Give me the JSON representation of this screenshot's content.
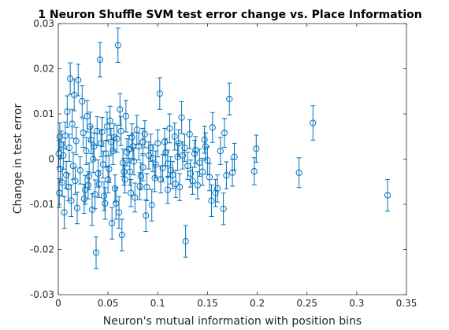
{
  "chart_data": {
    "type": "scatter",
    "title": "1 Neuron Shuffle SVM test error change vs. Place Information",
    "xlabel": "Neuron's mutual information with position bins",
    "ylabel": "Change in test error",
    "xlim": [
      0,
      0.35
    ],
    "ylim": [
      -0.03,
      0.03
    ],
    "x_ticks": [
      0,
      0.05,
      0.1,
      0.15,
      0.2,
      0.25,
      0.3,
      0.35
    ],
    "y_ticks": [
      -0.03,
      -0.02,
      -0.01,
      0,
      0.01,
      0.02,
      0.03
    ],
    "x_tick_labels": [
      "0",
      "0.05",
      "0.1",
      "0.15",
      "0.2",
      "0.25",
      "0.3",
      "0.35"
    ],
    "y_tick_labels": [
      "-0.03",
      "-0.02",
      "-0.01",
      "0",
      "0.01",
      "0.02",
      "0.03"
    ],
    "grid": false,
    "legend": "none",
    "marker": "circle",
    "error_bars": true,
    "color": "#0072BD",
    "points": [
      {
        "x": 0.331,
        "y": -0.008,
        "err": 0.0035
      },
      {
        "x": 0.256,
        "y": 0.008,
        "err": 0.0038
      },
      {
        "x": 0.242,
        "y": -0.003,
        "err": 0.0033
      },
      {
        "x": 0.199,
        "y": 0.0023,
        "err": 0.003
      },
      {
        "x": 0.197,
        "y": -0.0027,
        "err": 0.003
      },
      {
        "x": 0.177,
        "y": 0.0005,
        "err": 0.003
      },
      {
        "x": 0.175,
        "y": -0.003,
        "err": 0.003
      },
      {
        "x": 0.172,
        "y": 0.0133,
        "err": 0.0035
      },
      {
        "x": 0.169,
        "y": -0.0036,
        "err": 0.003
      },
      {
        "x": 0.167,
        "y": 0.0058,
        "err": 0.0032
      },
      {
        "x": 0.166,
        "y": -0.011,
        "err": 0.0035
      },
      {
        "x": 0.158,
        "y": -0.0075,
        "err": 0.003
      },
      {
        "x": 0.155,
        "y": 0.007,
        "err": 0.0033
      },
      {
        "x": 0.154,
        "y": -0.0092,
        "err": 0.0035
      },
      {
        "x": 0.15,
        "y": -0.0003,
        "err": 0.003
      },
      {
        "x": 0.147,
        "y": 0.0043,
        "err": 0.003
      },
      {
        "x": 0.145,
        "y": -0.0028,
        "err": 0.003
      },
      {
        "x": 0.14,
        "y": -0.0058,
        "err": 0.003
      },
      {
        "x": 0.138,
        "y": 0.002,
        "err": 0.003
      },
      {
        "x": 0.135,
        "y": -0.0048,
        "err": 0.003
      },
      {
        "x": 0.132,
        "y": 0.0055,
        "err": 0.0032
      },
      {
        "x": 0.13,
        "y": -0.0015,
        "err": 0.003
      },
      {
        "x": 0.128,
        "y": -0.0182,
        "err": 0.0035
      },
      {
        "x": 0.127,
        "y": 0.0025,
        "err": 0.003
      },
      {
        "x": 0.124,
        "y": 0.0092,
        "err": 0.0035
      },
      {
        "x": 0.122,
        "y": -0.0062,
        "err": 0.003
      },
      {
        "x": 0.12,
        "y": 0.0005,
        "err": 0.003
      },
      {
        "x": 0.117,
        "y": 0.005,
        "err": 0.003
      },
      {
        "x": 0.115,
        "y": -0.0035,
        "err": 0.003
      },
      {
        "x": 0.112,
        "y": 0.0068,
        "err": 0.0032
      },
      {
        "x": 0.11,
        "y": -0.0068,
        "err": 0.003
      },
      {
        "x": 0.108,
        "y": 0.0015,
        "err": 0.003
      },
      {
        "x": 0.105,
        "y": -0.002,
        "err": 0.003
      },
      {
        "x": 0.102,
        "y": 0.0145,
        "err": 0.0035
      },
      {
        "x": 0.1,
        "y": 0.0035,
        "err": 0.003
      },
      {
        "x": 0.097,
        "y": -0.0042,
        "err": 0.003
      },
      {
        "x": 0.094,
        "y": -0.0102,
        "err": 0.0035
      },
      {
        "x": 0.091,
        "y": 0.0008,
        "err": 0.003
      },
      {
        "x": 0.088,
        "y": -0.0125,
        "err": 0.0035
      },
      {
        "x": 0.085,
        "y": 0.0038,
        "err": 0.003
      },
      {
        "x": 0.082,
        "y": -0.006,
        "err": 0.003
      },
      {
        "x": 0.079,
        "y": 0.0065,
        "err": 0.0032
      },
      {
        "x": 0.076,
        "y": -0.0005,
        "err": 0.003
      },
      {
        "x": 0.073,
        "y": -0.0075,
        "err": 0.003
      },
      {
        "x": 0.071,
        "y": 0.0022,
        "err": 0.003
      },
      {
        "x": 0.068,
        "y": 0.0095,
        "err": 0.0035
      },
      {
        "x": 0.066,
        "y": -0.0028,
        "err": 0.003
      },
      {
        "x": 0.064,
        "y": -0.0168,
        "err": 0.0035
      },
      {
        "x": 0.062,
        "y": 0.011,
        "err": 0.0035
      },
      {
        "x": 0.06,
        "y": 0.0252,
        "err": 0.0038
      },
      {
        "x": 0.058,
        "y": -0.0098,
        "err": 0.0035
      },
      {
        "x": 0.056,
        "y": 0.0048,
        "err": 0.003
      },
      {
        "x": 0.054,
        "y": -0.0142,
        "err": 0.0035
      },
      {
        "x": 0.052,
        "y": 0.0085,
        "err": 0.0032
      },
      {
        "x": 0.05,
        "y": -0.0045,
        "err": 0.003
      },
      {
        "x": 0.048,
        "y": 0.0012,
        "err": 0.003
      },
      {
        "x": 0.046,
        "y": -0.0082,
        "err": 0.0032
      },
      {
        "x": 0.044,
        "y": 0.006,
        "err": 0.0032
      },
      {
        "x": 0.042,
        "y": 0.022,
        "err": 0.0038
      },
      {
        "x": 0.04,
        "y": -0.0032,
        "err": 0.003
      },
      {
        "x": 0.038,
        "y": -0.0207,
        "err": 0.0035
      },
      {
        "x": 0.036,
        "y": 0.0028,
        "err": 0.003
      },
      {
        "x": 0.034,
        "y": -0.0112,
        "err": 0.0035
      },
      {
        "x": 0.032,
        "y": 0.0072,
        "err": 0.0032
      },
      {
        "x": 0.03,
        "y": -0.0058,
        "err": 0.003
      },
      {
        "x": 0.028,
        "y": 0.0018,
        "err": 0.003
      },
      {
        "x": 0.026,
        "y": -0.0088,
        "err": 0.0032
      },
      {
        "x": 0.024,
        "y": 0.0128,
        "err": 0.0035
      },
      {
        "x": 0.022,
        "y": -0.0025,
        "err": 0.003
      },
      {
        "x": 0.02,
        "y": 0.0175,
        "err": 0.0035
      },
      {
        "x": 0.019,
        "y": -0.0108,
        "err": 0.0035
      },
      {
        "x": 0.018,
        "y": 0.004,
        "err": 0.003
      },
      {
        "x": 0.017,
        "y": -0.0048,
        "err": 0.003
      },
      {
        "x": 0.016,
        "y": 0.0142,
        "err": 0.0035
      },
      {
        "x": 0.015,
        "y": -0.0015,
        "err": 0.003
      },
      {
        "x": 0.014,
        "y": 0.0078,
        "err": 0.0032
      },
      {
        "x": 0.013,
        "y": -0.0092,
        "err": 0.0035
      },
      {
        "x": 0.012,
        "y": 0.0178,
        "err": 0.0035
      },
      {
        "x": 0.011,
        "y": 0.0025,
        "err": 0.003
      },
      {
        "x": 0.01,
        "y": -0.0062,
        "err": 0.003
      },
      {
        "x": 0.009,
        "y": 0.0105,
        "err": 0.0035
      },
      {
        "x": 0.008,
        "y": -0.0035,
        "err": 0.003
      },
      {
        "x": 0.007,
        "y": 0.0052,
        "err": 0.003
      },
      {
        "x": 0.006,
        "y": -0.0118,
        "err": 0.0035
      },
      {
        "x": 0.005,
        "y": 0.0008,
        "err": 0.003
      },
      {
        "x": 0.004,
        "y": -0.0052,
        "err": 0.003
      },
      {
        "x": 0.003,
        "y": 0.0032,
        "err": 0.003
      },
      {
        "x": 0.002,
        "y": -0.0022,
        "err": 0.003
      },
      {
        "x": 0.0015,
        "y": 0.005,
        "err": 0.003
      },
      {
        "x": 0.001,
        "y": -0.0075,
        "err": 0.0032
      },
      {
        "x": 0.0005,
        "y": 0.0012,
        "err": 0.003
      },
      {
        "x": 0.035,
        "y": 0.0,
        "err": 0.003
      },
      {
        "x": 0.045,
        "y": -0.0012,
        "err": 0.003
      },
      {
        "x": 0.055,
        "y": 0.0018,
        "err": 0.003
      },
      {
        "x": 0.065,
        "y": -0.0008,
        "err": 0.003
      },
      {
        "x": 0.075,
        "y": 0.0028,
        "err": 0.003
      },
      {
        "x": 0.085,
        "y": -0.0018,
        "err": 0.003
      },
      {
        "x": 0.095,
        "y": 0.0002,
        "err": 0.003
      },
      {
        "x": 0.11,
        "y": -0.001,
        "err": 0.003
      },
      {
        "x": 0.125,
        "y": 0.0008,
        "err": 0.003
      },
      {
        "x": 0.025,
        "y": 0.0058,
        "err": 0.0032
      },
      {
        "x": 0.027,
        "y": -0.0068,
        "err": 0.0032
      },
      {
        "x": 0.029,
        "y": 0.0095,
        "err": 0.0035
      },
      {
        "x": 0.031,
        "y": -0.0038,
        "err": 0.003
      },
      {
        "x": 0.033,
        "y": 0.0042,
        "err": 0.003
      },
      {
        "x": 0.037,
        "y": -0.0078,
        "err": 0.0032
      },
      {
        "x": 0.039,
        "y": 0.0062,
        "err": 0.0032
      },
      {
        "x": 0.041,
        "y": -0.0055,
        "err": 0.003
      },
      {
        "x": 0.043,
        "y": 0.0035,
        "err": 0.003
      },
      {
        "x": 0.047,
        "y": -0.0098,
        "err": 0.0035
      },
      {
        "x": 0.049,
        "y": 0.0072,
        "err": 0.0032
      },
      {
        "x": 0.051,
        "y": -0.0022,
        "err": 0.003
      },
      {
        "x": 0.053,
        "y": 0.0038,
        "err": 0.003
      },
      {
        "x": 0.057,
        "y": -0.0065,
        "err": 0.003
      },
      {
        "x": 0.059,
        "y": 0.0045,
        "err": 0.003
      },
      {
        "x": 0.061,
        "y": -0.0118,
        "err": 0.0035
      },
      {
        "x": 0.063,
        "y": 0.0062,
        "err": 0.0032
      },
      {
        "x": 0.067,
        "y": -0.0045,
        "err": 0.003
      },
      {
        "x": 0.069,
        "y": 0.0015,
        "err": 0.003
      },
      {
        "x": 0.072,
        "y": -0.0028,
        "err": 0.003
      },
      {
        "x": 0.074,
        "y": 0.0048,
        "err": 0.003
      },
      {
        "x": 0.077,
        "y": -0.0085,
        "err": 0.0032
      },
      {
        "x": 0.081,
        "y": 0.0028,
        "err": 0.003
      },
      {
        "x": 0.083,
        "y": -0.0038,
        "err": 0.003
      },
      {
        "x": 0.087,
        "y": 0.0055,
        "err": 0.003
      },
      {
        "x": 0.089,
        "y": -0.0062,
        "err": 0.003
      },
      {
        "x": 0.093,
        "y": 0.0025,
        "err": 0.003
      },
      {
        "x": 0.098,
        "y": -0.0012,
        "err": 0.003
      },
      {
        "x": 0.103,
        "y": -0.0045,
        "err": 0.003
      },
      {
        "x": 0.107,
        "y": 0.0038,
        "err": 0.003
      },
      {
        "x": 0.113,
        "y": -0.0025,
        "err": 0.003
      },
      {
        "x": 0.118,
        "y": -0.0055,
        "err": 0.003
      },
      {
        "x": 0.121,
        "y": 0.0035,
        "err": 0.003
      },
      {
        "x": 0.133,
        "y": -0.0032,
        "err": 0.003
      },
      {
        "x": 0.137,
        "y": 0.0012,
        "err": 0.003
      },
      {
        "x": 0.142,
        "y": -0.0008,
        "err": 0.003
      },
      {
        "x": 0.148,
        "y": 0.0028,
        "err": 0.003
      },
      {
        "x": 0.152,
        "y": -0.004,
        "err": 0.003
      },
      {
        "x": 0.16,
        "y": -0.0065,
        "err": 0.003
      },
      {
        "x": 0.163,
        "y": 0.0018,
        "err": 0.003
      }
    ]
  }
}
